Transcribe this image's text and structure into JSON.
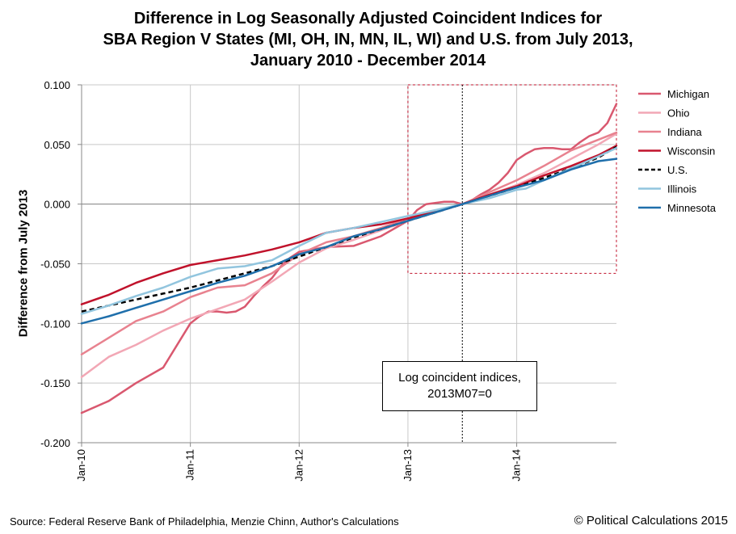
{
  "chart_data": {
    "type": "line",
    "title_lines": [
      "Difference in Log Seasonally Adjusted Coincident Indices for",
      "SBA Region V States (MI, OH, IN, MN, IL, WI) and U.S. from July 2013,",
      "January 2010 - December 2014"
    ],
    "xlabel": "",
    "ylabel": "Difference from July 2013",
    "ylim": [
      -0.2,
      0.1
    ],
    "yticks": [
      0.1,
      0.05,
      0.0,
      -0.05,
      -0.1,
      -0.15,
      -0.2
    ],
    "ytick_labels": [
      "0.100",
      "0.050",
      "0.000",
      "-0.050",
      "-0.100",
      "-0.150",
      "-0.200"
    ],
    "xlim": [
      0,
      59
    ],
    "xticks": [
      0,
      12,
      24,
      36,
      48
    ],
    "xtick_labels": [
      "Jan-10",
      "Jan-11",
      "Jan-12",
      "Jan-13",
      "Jan-14"
    ],
    "grid": true,
    "legend_position": "right",
    "annotation": {
      "lines": [
        "Log coincident indices,",
        "2013M07=0"
      ],
      "x": 42
    },
    "highlight_box": {
      "x": [
        36,
        60
      ],
      "y": [
        -0.058,
        0.1
      ]
    },
    "series": [
      {
        "name": "Michigan",
        "color": "#d9586f",
        "style": "solid",
        "points": [
          [
            0,
            -0.175
          ],
          [
            3,
            -0.165
          ],
          [
            6,
            -0.15
          ],
          [
            9,
            -0.137
          ],
          [
            12,
            -0.1
          ],
          [
            13,
            -0.094
          ],
          [
            14,
            -0.09
          ],
          [
            15,
            -0.09
          ],
          [
            16,
            -0.091
          ],
          [
            17,
            -0.09
          ],
          [
            18,
            -0.086
          ],
          [
            19,
            -0.077
          ],
          [
            20,
            -0.069
          ],
          [
            21,
            -0.062
          ],
          [
            22,
            -0.052
          ],
          [
            23,
            -0.045
          ],
          [
            24,
            -0.04
          ],
          [
            27,
            -0.036
          ],
          [
            30,
            -0.035
          ],
          [
            33,
            -0.027
          ],
          [
            36,
            -0.014
          ],
          [
            37,
            -0.005
          ],
          [
            38,
            0.0
          ],
          [
            39,
            0.001
          ],
          [
            40,
            0.002
          ],
          [
            41,
            0.002
          ],
          [
            42,
            0.0
          ],
          [
            43,
            0.003
          ],
          [
            44,
            0.008
          ],
          [
            45,
            0.012
          ],
          [
            46,
            0.018
          ],
          [
            47,
            0.026
          ],
          [
            48,
            0.037
          ],
          [
            49,
            0.042
          ],
          [
            50,
            0.046
          ],
          [
            51,
            0.047
          ],
          [
            52,
            0.047
          ],
          [
            53,
            0.046
          ],
          [
            54,
            0.046
          ],
          [
            55,
            0.052
          ],
          [
            56,
            0.057
          ],
          [
            57,
            0.06
          ],
          [
            58,
            0.068
          ],
          [
            59,
            0.084
          ]
        ]
      },
      {
        "name": "Ohio",
        "color": "#f2a7b5",
        "style": "solid",
        "points": [
          [
            0,
            -0.145
          ],
          [
            3,
            -0.128
          ],
          [
            6,
            -0.118
          ],
          [
            9,
            -0.106
          ],
          [
            12,
            -0.096
          ],
          [
            15,
            -0.088
          ],
          [
            18,
            -0.08
          ],
          [
            21,
            -0.065
          ],
          [
            24,
            -0.049
          ],
          [
            27,
            -0.037
          ],
          [
            30,
            -0.03
          ],
          [
            33,
            -0.022
          ],
          [
            36,
            -0.014
          ],
          [
            39,
            -0.007
          ],
          [
            42,
            0.0
          ],
          [
            45,
            0.008
          ],
          [
            48,
            0.016
          ],
          [
            51,
            0.026
          ],
          [
            54,
            0.038
          ],
          [
            57,
            0.05
          ],
          [
            59,
            0.059
          ]
        ]
      },
      {
        "name": "Indiana",
        "color": "#e8828f",
        "style": "solid",
        "points": [
          [
            0,
            -0.126
          ],
          [
            3,
            -0.112
          ],
          [
            6,
            -0.098
          ],
          [
            9,
            -0.09
          ],
          [
            12,
            -0.078
          ],
          [
            15,
            -0.07
          ],
          [
            18,
            -0.068
          ],
          [
            21,
            -0.058
          ],
          [
            24,
            -0.042
          ],
          [
            27,
            -0.032
          ],
          [
            30,
            -0.027
          ],
          [
            33,
            -0.02
          ],
          [
            36,
            -0.012
          ],
          [
            39,
            -0.006
          ],
          [
            42,
            0.0
          ],
          [
            45,
            0.01
          ],
          [
            48,
            0.02
          ],
          [
            51,
            0.032
          ],
          [
            54,
            0.045
          ],
          [
            57,
            0.054
          ],
          [
            59,
            0.06
          ]
        ]
      },
      {
        "name": "Wisconsin",
        "color": "#c0122b",
        "style": "solid",
        "points": [
          [
            0,
            -0.084
          ],
          [
            3,
            -0.076
          ],
          [
            6,
            -0.066
          ],
          [
            9,
            -0.058
          ],
          [
            12,
            -0.051
          ],
          [
            15,
            -0.047
          ],
          [
            18,
            -0.043
          ],
          [
            21,
            -0.038
          ],
          [
            24,
            -0.032
          ],
          [
            27,
            -0.024
          ],
          [
            30,
            -0.02
          ],
          [
            33,
            -0.017
          ],
          [
            36,
            -0.012
          ],
          [
            39,
            -0.006
          ],
          [
            42,
            0.0
          ],
          [
            45,
            0.008
          ],
          [
            48,
            0.015
          ],
          [
            51,
            0.024
          ],
          [
            54,
            0.032
          ],
          [
            57,
            0.041
          ],
          [
            59,
            0.049
          ]
        ]
      },
      {
        "name": "U.S.",
        "color": "#000000",
        "style": "dashed",
        "points": [
          [
            0,
            -0.09
          ],
          [
            3,
            -0.085
          ],
          [
            6,
            -0.08
          ],
          [
            9,
            -0.075
          ],
          [
            12,
            -0.07
          ],
          [
            15,
            -0.064
          ],
          [
            18,
            -0.058
          ],
          [
            21,
            -0.052
          ],
          [
            24,
            -0.044
          ],
          [
            27,
            -0.036
          ],
          [
            30,
            -0.028
          ],
          [
            33,
            -0.021
          ],
          [
            36,
            -0.014
          ],
          [
            39,
            -0.007
          ],
          [
            42,
            0.0
          ],
          [
            45,
            0.007
          ],
          [
            48,
            0.014
          ],
          [
            51,
            0.022
          ],
          [
            54,
            0.03
          ],
          [
            57,
            0.039
          ],
          [
            59,
            0.048
          ]
        ]
      },
      {
        "name": "Illinois",
        "color": "#92c5de",
        "style": "solid",
        "points": [
          [
            0,
            -0.092
          ],
          [
            3,
            -0.085
          ],
          [
            6,
            -0.077
          ],
          [
            9,
            -0.07
          ],
          [
            12,
            -0.061
          ],
          [
            15,
            -0.054
          ],
          [
            18,
            -0.052
          ],
          [
            21,
            -0.047
          ],
          [
            24,
            -0.035
          ],
          [
            27,
            -0.024
          ],
          [
            30,
            -0.02
          ],
          [
            33,
            -0.015
          ],
          [
            36,
            -0.01
          ],
          [
            39,
            -0.005
          ],
          [
            42,
            0.0
          ],
          [
            45,
            0.005
          ],
          [
            48,
            0.012
          ],
          [
            49,
            0.013
          ],
          [
            51,
            0.02
          ],
          [
            54,
            0.03
          ],
          [
            57,
            0.04
          ],
          [
            59,
            0.047
          ]
        ]
      },
      {
        "name": "Minnesota",
        "color": "#1f6fab",
        "style": "solid",
        "points": [
          [
            0,
            -0.1
          ],
          [
            3,
            -0.094
          ],
          [
            6,
            -0.087
          ],
          [
            9,
            -0.08
          ],
          [
            12,
            -0.073
          ],
          [
            15,
            -0.066
          ],
          [
            18,
            -0.06
          ],
          [
            21,
            -0.052
          ],
          [
            24,
            -0.042
          ],
          [
            27,
            -0.036
          ],
          [
            30,
            -0.027
          ],
          [
            33,
            -0.021
          ],
          [
            36,
            -0.014
          ],
          [
            39,
            -0.007
          ],
          [
            42,
            0.0
          ],
          [
            45,
            0.007
          ],
          [
            48,
            0.014
          ],
          [
            51,
            0.02
          ],
          [
            54,
            0.029
          ],
          [
            57,
            0.036
          ],
          [
            59,
            0.038
          ]
        ]
      }
    ]
  },
  "footer": {
    "source": "Source: Federal Reserve Bank of Philadelphia, Menzie Chinn, Author's Calculations",
    "copyright": "© Political Calculations 2015"
  }
}
